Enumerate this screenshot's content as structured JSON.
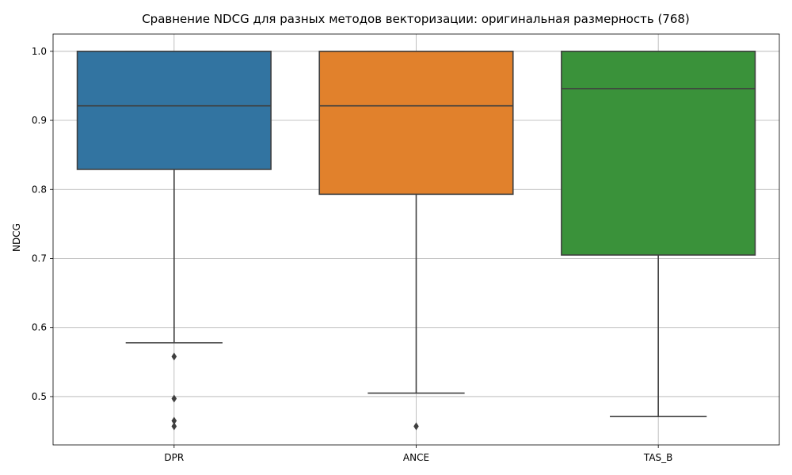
{
  "chart_data": {
    "type": "box",
    "title": "Сравнение NDCG для разных методов векторизации: оригинальная размерность (768)",
    "xlabel": "",
    "ylabel": "NDCG",
    "ylim": [
      0.43,
      1.025
    ],
    "yticks": [
      "0.5",
      "0.6",
      "0.7",
      "0.8",
      "0.9",
      "1.0"
    ],
    "grid": true,
    "categories": [
      "DPR",
      "ANCE",
      "TAS_B"
    ],
    "boxes": [
      {
        "name": "DPR",
        "color": "#3274a1",
        "whisker_low": 0.578,
        "q1": 0.829,
        "median": 0.921,
        "q3": 1.0,
        "whisker_high": 1.0,
        "outliers": [
          0.558,
          0.497,
          0.465,
          0.457
        ]
      },
      {
        "name": "ANCE",
        "color": "#e1812c",
        "whisker_low": 0.505,
        "q1": 0.793,
        "median": 0.921,
        "q3": 1.0,
        "whisker_high": 1.0,
        "outliers": [
          0.457
        ]
      },
      {
        "name": "TAS_B",
        "color": "#3a923a",
        "whisker_low": 0.471,
        "q1": 0.705,
        "median": 0.946,
        "q3": 1.0,
        "whisker_high": 1.0,
        "outliers": []
      }
    ]
  }
}
